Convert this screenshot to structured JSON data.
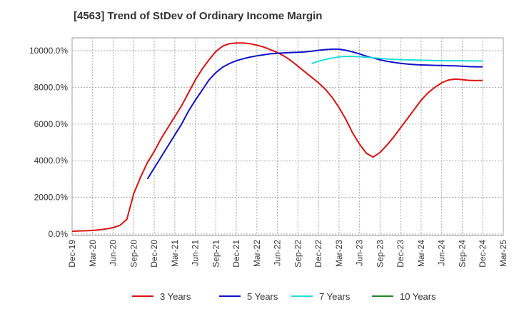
{
  "chart_data": {
    "type": "line",
    "title": "[4563]  Trend of StDev of Ordinary Income Margin",
    "xlabel": "",
    "ylabel": "",
    "x_tick_labels": [
      "Dec-19",
      "Mar-20",
      "Jun-20",
      "Sep-20",
      "Dec-20",
      "Mar-21",
      "Jun-21",
      "Sep-21",
      "Dec-21",
      "Mar-22",
      "Jun-22",
      "Sep-22",
      "Dec-22",
      "Mar-23",
      "Jun-23",
      "Sep-23",
      "Dec-23",
      "Mar-24",
      "Jun-24",
      "Sep-24",
      "Dec-24",
      "Mar-25"
    ],
    "y_tick_labels": [
      "0.0%",
      "2000.0%",
      "4000.0%",
      "6000.0%",
      "8000.0%",
      "10000.0%"
    ],
    "ylim": [
      0,
      10600
    ],
    "grid": true,
    "legend_position": "bottom",
    "series": [
      {
        "name": "3 Years",
        "color": "#dd1111",
        "points": [
          [
            "Dec-19",
            150
          ],
          [
            "Jan-20",
            170
          ],
          [
            "Feb-20",
            180
          ],
          [
            "Mar-20",
            200
          ],
          [
            "Apr-20",
            230
          ],
          [
            "May-20",
            280
          ],
          [
            "Jun-20",
            350
          ],
          [
            "Jul-20",
            480
          ],
          [
            "Aug-20",
            800
          ],
          [
            "Sep-20",
            2200
          ],
          [
            "Oct-20",
            3100
          ],
          [
            "Nov-20",
            3900
          ],
          [
            "Dec-20",
            4500
          ],
          [
            "Jan-21",
            5200
          ],
          [
            "Feb-21",
            5800
          ],
          [
            "Mar-21",
            6400
          ],
          [
            "Apr-21",
            7000
          ],
          [
            "May-21",
            7700
          ],
          [
            "Jun-21",
            8400
          ],
          [
            "Jul-21",
            9000
          ],
          [
            "Aug-21",
            9500
          ],
          [
            "Sep-21",
            9950
          ],
          [
            "Oct-21",
            10250
          ],
          [
            "Nov-21",
            10380
          ],
          [
            "Dec-21",
            10420
          ],
          [
            "Jan-22",
            10420
          ],
          [
            "Feb-22",
            10380
          ],
          [
            "Mar-22",
            10300
          ],
          [
            "Apr-22",
            10200
          ],
          [
            "May-22",
            10050
          ],
          [
            "Jun-22",
            9900
          ],
          [
            "Jul-22",
            9700
          ],
          [
            "Aug-22",
            9450
          ],
          [
            "Sep-22",
            9150
          ],
          [
            "Oct-22",
            8850
          ],
          [
            "Nov-22",
            8550
          ],
          [
            "Dec-22",
            8250
          ],
          [
            "Jan-23",
            7900
          ],
          [
            "Feb-23",
            7450
          ],
          [
            "Mar-23",
            6900
          ],
          [
            "Apr-23",
            6250
          ],
          [
            "May-23",
            5500
          ],
          [
            "Jun-23",
            4900
          ],
          [
            "Jul-23",
            4400
          ],
          [
            "Aug-23",
            4200
          ],
          [
            "Sep-23",
            4450
          ],
          [
            "Oct-23",
            4850
          ],
          [
            "Nov-23",
            5300
          ],
          [
            "Dec-23",
            5800
          ],
          [
            "Jan-24",
            6300
          ],
          [
            "Feb-24",
            6800
          ],
          [
            "Mar-24",
            7300
          ],
          [
            "Apr-24",
            7700
          ],
          [
            "May-24",
            8000
          ],
          [
            "Jun-24",
            8250
          ],
          [
            "Jul-24",
            8400
          ],
          [
            "Aug-24",
            8450
          ],
          [
            "Sep-24",
            8420
          ],
          [
            "Oct-24",
            8380
          ],
          [
            "Nov-24",
            8370
          ],
          [
            "Dec-24",
            8380
          ]
        ]
      },
      {
        "name": "5 Years",
        "color": "#1111cc",
        "points": [
          [
            "Nov-20",
            3000
          ],
          [
            "Dec-20",
            3600
          ],
          [
            "Jan-21",
            4200
          ],
          [
            "Feb-21",
            4800
          ],
          [
            "Mar-21",
            5400
          ],
          [
            "Apr-21",
            6000
          ],
          [
            "May-21",
            6700
          ],
          [
            "Jun-21",
            7300
          ],
          [
            "Jul-21",
            7850
          ],
          [
            "Aug-21",
            8400
          ],
          [
            "Sep-21",
            8800
          ],
          [
            "Oct-21",
            9100
          ],
          [
            "Nov-21",
            9300
          ],
          [
            "Dec-21",
            9450
          ],
          [
            "Jan-22",
            9560
          ],
          [
            "Feb-22",
            9650
          ],
          [
            "Mar-22",
            9720
          ],
          [
            "Apr-22",
            9780
          ],
          [
            "May-22",
            9830
          ],
          [
            "Jun-22",
            9860
          ],
          [
            "Jul-22",
            9880
          ],
          [
            "Aug-22",
            9900
          ],
          [
            "Sep-22",
            9910
          ],
          [
            "Oct-22",
            9930
          ],
          [
            "Nov-22",
            9970
          ],
          [
            "Dec-22",
            10020
          ],
          [
            "Jan-23",
            10060
          ],
          [
            "Feb-23",
            10080
          ],
          [
            "Mar-23",
            10080
          ],
          [
            "Apr-23",
            10020
          ],
          [
            "May-23",
            9930
          ],
          [
            "Jun-23",
            9820
          ],
          [
            "Jul-23",
            9700
          ],
          [
            "Aug-23",
            9600
          ],
          [
            "Sep-23",
            9500
          ],
          [
            "Oct-23",
            9420
          ],
          [
            "Nov-23",
            9360
          ],
          [
            "Dec-23",
            9310
          ],
          [
            "Jan-24",
            9270
          ],
          [
            "Feb-24",
            9240
          ],
          [
            "Mar-24",
            9220
          ],
          [
            "Apr-24",
            9210
          ],
          [
            "May-24",
            9200
          ],
          [
            "Jun-24",
            9190
          ],
          [
            "Jul-24",
            9180
          ],
          [
            "Aug-24",
            9170
          ],
          [
            "Sep-24",
            9150
          ],
          [
            "Oct-24",
            9130
          ],
          [
            "Nov-24",
            9120
          ],
          [
            "Dec-24",
            9120
          ]
        ]
      },
      {
        "name": "7 Years",
        "color": "#22dddd",
        "points": [
          [
            "Nov-22",
            9300
          ],
          [
            "Dec-22",
            9420
          ],
          [
            "Jan-23",
            9520
          ],
          [
            "Feb-23",
            9600
          ],
          [
            "Mar-23",
            9660
          ],
          [
            "Apr-23",
            9690
          ],
          [
            "May-23",
            9690
          ],
          [
            "Jun-23",
            9670
          ],
          [
            "Jul-23",
            9640
          ],
          [
            "Aug-23",
            9610
          ],
          [
            "Sep-23",
            9580
          ],
          [
            "Oct-23",
            9550
          ],
          [
            "Nov-23",
            9530
          ],
          [
            "Dec-23",
            9510
          ],
          [
            "Jan-24",
            9500
          ],
          [
            "Feb-24",
            9490
          ],
          [
            "Mar-24",
            9480
          ],
          [
            "Apr-24",
            9470
          ],
          [
            "May-24",
            9460
          ],
          [
            "Jun-24",
            9460
          ],
          [
            "Jul-24",
            9450
          ],
          [
            "Aug-24",
            9450
          ],
          [
            "Sep-24",
            9450
          ],
          [
            "Oct-24",
            9440
          ],
          [
            "Nov-24",
            9440
          ],
          [
            "Dec-24",
            9440
          ]
        ]
      },
      {
        "name": "10 Years",
        "color": "#228822",
        "points": []
      }
    ]
  }
}
